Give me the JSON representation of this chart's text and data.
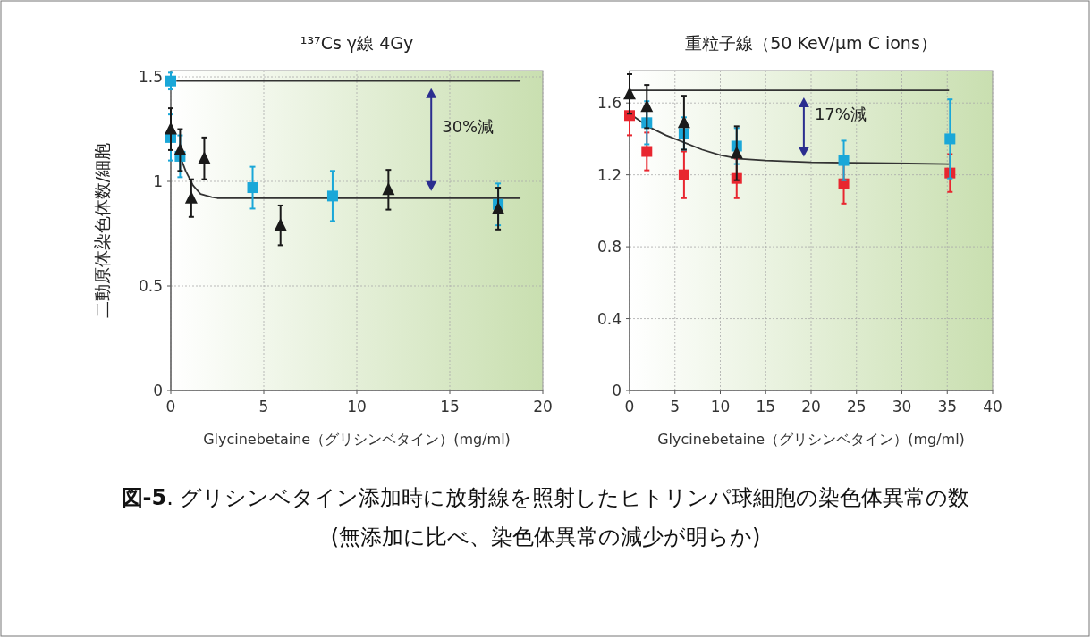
{
  "chart_data": [
    {
      "type": "scatter",
      "title": "¹³⁷Cs γ線 4Gy",
      "xlabel": "Glycinebetaine（グリシンベタイン）(mg/ml)",
      "ylabel": "二動原体染色体数/細胞",
      "xlim": [
        0,
        20
      ],
      "xticks": [
        0,
        5,
        10,
        15,
        20
      ],
      "ylim": [
        0,
        1.53
      ],
      "yticks": [
        0,
        0.5,
        1,
        1.5
      ],
      "grid": true,
      "series": [
        {
          "type": "line",
          "color": "#333333",
          "marker": "none",
          "x": [
            0.3,
            18.8
          ],
          "values": [
            1.48,
            1.48
          ]
        },
        {
          "type": "line",
          "color": "#333333",
          "marker": "none",
          "x": [
            0.5,
            0.8,
            1.2,
            1.6,
            2.2,
            2.5,
            18.8
          ],
          "values": [
            1.12,
            1.05,
            0.98,
            0.94,
            0.925,
            0.92,
            0.92
          ]
        },
        {
          "color": "#1aa7d8",
          "marker": "square",
          "x": [
            0,
            0,
            0.5,
            4.4,
            8.7,
            17.6
          ],
          "values": [
            1.48,
            1.21,
            1.12,
            0.97,
            0.93,
            0.89
          ],
          "errors": [
            0.04,
            0.11,
            0.1,
            0.1,
            0.12,
            0.1
          ]
        },
        {
          "color": "#1a1a1a",
          "marker": "triangle",
          "x": [
            0,
            0.5,
            1.1,
            1.8,
            5.9,
            11.7,
            17.6
          ],
          "values": [
            1.25,
            1.15,
            0.92,
            1.11,
            0.79,
            0.96,
            0.87
          ],
          "errors": [
            0.1,
            0.1,
            0.09,
            0.1,
            0.095,
            0.095,
            0.1
          ]
        }
      ],
      "annotations": [
        "30%減",
        "図-5. グリシンベタイン添加時に放射線を照射したヒトリンパ球細胞の染色体異常の数",
        "(無添加に比べ、染色体異常の減少が明らか)"
      ]
    },
    {
      "type": "scatter",
      "title": "重粒子線（50 KeV/μm C ions）",
      "xlabel": "Glycinebetaine（グリシンベタイン）(mg/ml)",
      "xlim": [
        0,
        40
      ],
      "xticks": [
        0,
        5,
        10,
        15,
        20,
        25,
        30,
        35,
        40
      ],
      "ylim": [
        0,
        1.78
      ],
      "yticks": [
        0,
        0.4,
        0.8,
        1.2,
        1.6
      ],
      "grid": true,
      "series": [
        {
          "type": "line",
          "color": "#333333",
          "marker": "none",
          "x": [
            0,
            35.2
          ],
          "values": [
            1.67,
            1.67
          ]
        },
        {
          "type": "line",
          "color": "#333333",
          "marker": "none",
          "x": [
            0.3,
            2,
            4,
            6,
            8,
            10,
            12,
            15,
            20,
            35.2
          ],
          "values": [
            1.53,
            1.47,
            1.42,
            1.38,
            1.34,
            1.31,
            1.29,
            1.28,
            1.27,
            1.26
          ]
        },
        {
          "color": "#e8262f",
          "marker": "square",
          "x": [
            0,
            1.9,
            6,
            11.8,
            23.6,
            35.3
          ],
          "values": [
            1.53,
            1.33,
            1.2,
            1.18,
            1.15,
            1.21
          ],
          "errors": [
            0.11,
            0.105,
            0.13,
            0.11,
            0.11,
            0.105
          ]
        },
        {
          "color": "#1aa7d8",
          "marker": "square",
          "x": [
            1.9,
            6,
            11.8,
            23.6,
            35.3
          ],
          "values": [
            1.49,
            1.43,
            1.36,
            1.28,
            1.4
          ],
          "errors": [
            0.12,
            0.09,
            0.1,
            0.11,
            0.22
          ]
        },
        {
          "color": "#1a1a1a",
          "marker": "triangle",
          "x": [
            0,
            1.9,
            6,
            11.8
          ],
          "values": [
            1.65,
            1.58,
            1.49,
            1.32
          ],
          "errors": [
            0.11,
            0.12,
            0.15,
            0.15
          ]
        }
      ],
      "annotations": [
        "17%減"
      ]
    }
  ]
}
